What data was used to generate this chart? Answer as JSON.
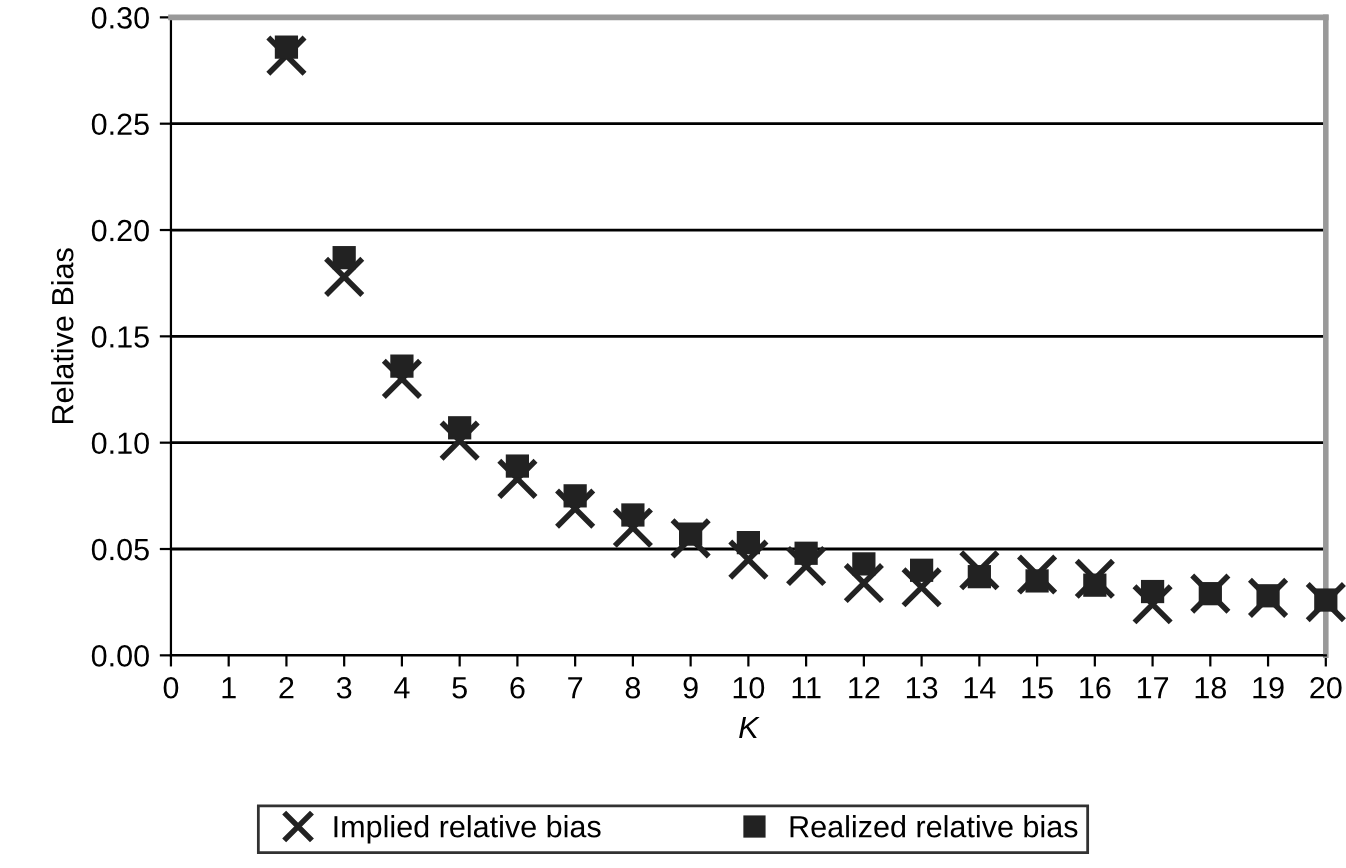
{
  "chart_data": {
    "type": "scatter",
    "xlabel": "K",
    "ylabel": "Relative Bias",
    "x": [
      2,
      3,
      4,
      5,
      6,
      7,
      8,
      9,
      10,
      11,
      12,
      13,
      14,
      15,
      16,
      17,
      18,
      19,
      20
    ],
    "series": [
      {
        "name": "Implied relative bias",
        "color": "#222222",
        "marker": "cross",
        "values": [
          0.282,
          0.178,
          0.13,
          0.101,
          0.083,
          0.069,
          0.06,
          0.055,
          0.045,
          0.042,
          0.034,
          0.032,
          0.04,
          0.038,
          0.036,
          0.024,
          0.029,
          0.027,
          0.025
        ]
      },
      {
        "name": "Realized relative bias",
        "color": "#222222",
        "marker": "square",
        "values": [
          0.286,
          0.187,
          0.136,
          0.107,
          0.089,
          0.075,
          0.066,
          0.057,
          0.053,
          0.048,
          0.043,
          0.04,
          0.037,
          0.035,
          0.033,
          0.03,
          0.029,
          0.028,
          0.026
        ]
      }
    ],
    "xlim": [
      0,
      20
    ],
    "xticks": [
      0,
      1,
      2,
      3,
      4,
      5,
      6,
      7,
      8,
      9,
      10,
      11,
      12,
      13,
      14,
      15,
      16,
      17,
      18,
      19,
      20
    ],
    "ylim": [
      0,
      0.3
    ],
    "yticks": [
      {
        "value": 0,
        "label": "0.00"
      },
      {
        "value": 0.05,
        "label": "0.05"
      },
      {
        "value": 0.1,
        "label": "0.10"
      },
      {
        "value": 0.15,
        "label": "0.15"
      },
      {
        "value": 0.2,
        "label": "0.20"
      },
      {
        "value": 0.25,
        "label": "0.25"
      },
      {
        "value": 0.3,
        "label": "0.30"
      }
    ],
    "grid": "y",
    "legend": "bottom"
  }
}
